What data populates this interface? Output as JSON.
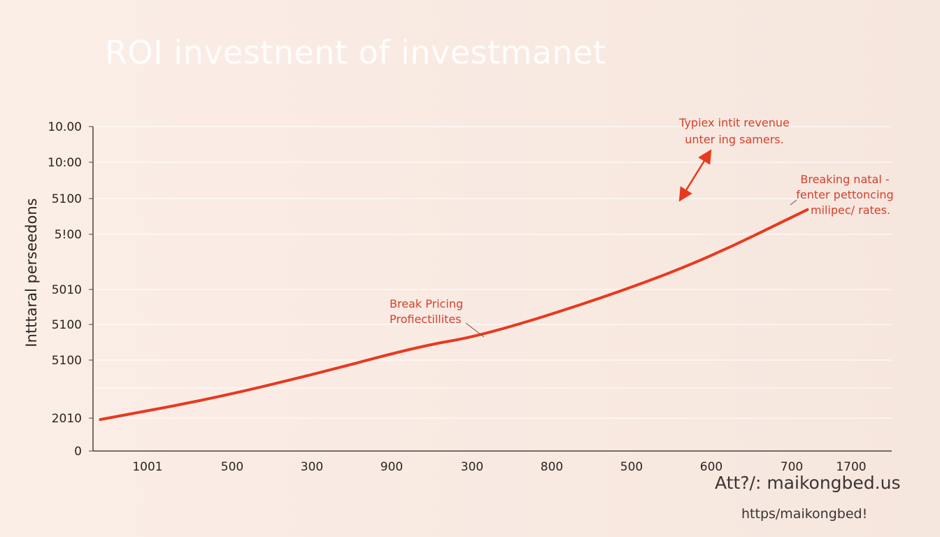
{
  "chart_data": {
    "type": "line",
    "title": "ROI investnent of investmanet",
    "ylabel": "Intttaral perseedons",
    "xlabel": "",
    "x_tick_labels": [
      "1001",
      "500",
      "300",
      "900",
      "300",
      "800",
      "500",
      "600",
      "700",
      "1700"
    ],
    "y_tick_labels": [
      "0",
      "2010",
      "5100",
      "5100",
      "5010",
      "5!00",
      "5100",
      "10:00",
      "10.00"
    ],
    "grid": true,
    "series": [
      {
        "color": "#e8391e",
        "points": [
          [
            -0.59,
            0.097
          ],
          [
            0.78,
            0.16
          ],
          [
            2.09,
            0.237
          ],
          [
            3.4,
            0.323
          ],
          [
            4.18,
            0.356
          ],
          [
            5.58,
            0.463
          ],
          [
            6.89,
            0.582
          ],
          [
            8.24,
            0.744
          ]
        ]
      }
    ],
    "annotations": [
      {
        "lines": [
          "Typiex intit revenue",
          "unter ing samers."
        ]
      },
      {
        "lines": [
          "Breaking natal -",
          "fenter pettoncing",
          "milipec/ rates."
        ]
      },
      {
        "lines": [
          "Break Pricing",
          "Profiectillites"
        ]
      }
    ]
  },
  "footer": {
    "source_line": "Att?/: maikongbed.us",
    "url_line": "https/maikongbed!"
  },
  "colors": {
    "accent": "#e8391e",
    "annotation": "#d5402b",
    "background": "#f8ebe3"
  }
}
